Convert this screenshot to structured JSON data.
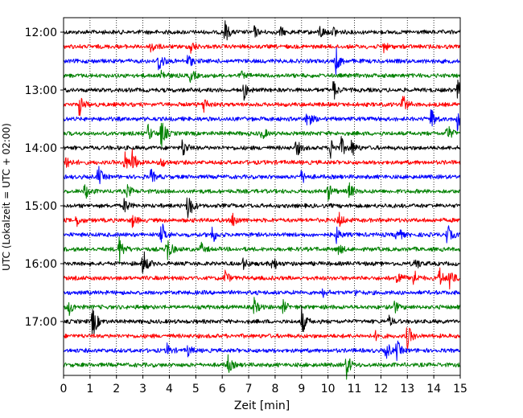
{
  "chart_data": {
    "type": "line",
    "title": "",
    "xlabel": "Zeit  [min]",
    "ylabel": "UTC (Lokalzeit = UTC + 02:00)",
    "xlim": [
      0,
      15
    ],
    "x_ticks": [
      "0",
      "1",
      "2",
      "3",
      "4",
      "5",
      "6",
      "7",
      "8",
      "9",
      "10",
      "11",
      "12",
      "13",
      "14",
      "15"
    ],
    "y_ticks": [
      "12:00",
      "13:00",
      "14:00",
      "15:00",
      "16:00",
      "17:00"
    ],
    "grid": "vertical-dotted",
    "trace_colors": [
      "#000000",
      "#ff0000",
      "#0000ff",
      "#008000"
    ],
    "traces": [
      {
        "start": "12:00",
        "events": [
          [
            6.1,
            0.6
          ],
          [
            7.2,
            0.3
          ],
          [
            8.2,
            0.25
          ],
          [
            9.7,
            0.4
          ],
          [
            10.2,
            0.3
          ]
        ]
      },
      {
        "start": "12:15",
        "events": [
          [
            3.3,
            0.45
          ],
          [
            4.8,
            0.4
          ],
          [
            12.1,
            0.3
          ]
        ]
      },
      {
        "start": "12:30",
        "events": [
          [
            3.6,
            0.75
          ],
          [
            4.7,
            0.4
          ],
          [
            10.3,
            0.7
          ]
        ]
      },
      {
        "start": "12:45",
        "events": [
          [
            3.7,
            0.35
          ],
          [
            4.8,
            0.35
          ],
          [
            6.7,
            0.2
          ]
        ]
      },
      {
        "start": "13:00",
        "events": [
          [
            6.8,
            0.55
          ],
          [
            10.2,
            0.55
          ],
          [
            14.9,
            0.5
          ]
        ]
      },
      {
        "start": "13:15",
        "events": [
          [
            0.6,
            0.6
          ],
          [
            5.3,
            0.45
          ],
          [
            12.8,
            0.7
          ]
        ]
      },
      {
        "start": "13:30",
        "events": [
          [
            9.2,
            0.65
          ],
          [
            13.9,
            0.6
          ],
          [
            14.9,
            0.7
          ]
        ]
      },
      {
        "start": "13:45",
        "events": [
          [
            3.2,
            0.45
          ],
          [
            3.7,
            0.85
          ],
          [
            7.5,
            0.35
          ],
          [
            14.5,
            0.55
          ]
        ]
      },
      {
        "start": "14:00",
        "events": [
          [
            4.5,
            0.55
          ],
          [
            8.8,
            0.5
          ],
          [
            10.1,
            0.55
          ],
          [
            10.5,
            0.5
          ],
          [
            10.9,
            0.45
          ]
        ]
      },
      {
        "start": "14:15",
        "events": [
          [
            0.1,
            0.5
          ],
          [
            2.3,
            0.6
          ],
          [
            2.6,
            0.7
          ],
          [
            3.7,
            0.3
          ]
        ]
      },
      {
        "start": "14:30",
        "events": [
          [
            1.3,
            0.6
          ],
          [
            3.3,
            0.4
          ],
          [
            9.0,
            0.4
          ]
        ]
      },
      {
        "start": "14:45",
        "events": [
          [
            0.8,
            0.45
          ],
          [
            2.4,
            0.35
          ],
          [
            10.0,
            0.45
          ],
          [
            10.8,
            0.45
          ]
        ]
      },
      {
        "start": "15:00",
        "events": [
          [
            2.3,
            0.45
          ],
          [
            4.7,
            1.0
          ]
        ]
      },
      {
        "start": "15:15",
        "events": [
          [
            0.5,
            0.3
          ],
          [
            2.6,
            0.35
          ],
          [
            6.4,
            0.45
          ],
          [
            10.4,
            0.45
          ]
        ]
      },
      {
        "start": "15:30",
        "events": [
          [
            3.7,
            0.7
          ],
          [
            5.6,
            0.55
          ],
          [
            10.3,
            0.45
          ],
          [
            12.6,
            0.55
          ],
          [
            14.5,
            0.6
          ]
        ]
      },
      {
        "start": "15:45",
        "events": [
          [
            2.1,
            0.8
          ],
          [
            3.9,
            0.8
          ],
          [
            5.2,
            0.3
          ],
          [
            10.4,
            0.3
          ]
        ]
      },
      {
        "start": "16:00",
        "events": [
          [
            3.0,
            0.9
          ],
          [
            6.8,
            0.3
          ],
          [
            7.9,
            0.45
          ],
          [
            13.3,
            0.35
          ]
        ]
      },
      {
        "start": "16:15",
        "events": [
          [
            6.1,
            0.45
          ],
          [
            12.6,
            0.6
          ],
          [
            13.2,
            0.65
          ],
          [
            14.2,
            0.6
          ],
          [
            14.6,
            0.7
          ]
        ]
      },
      {
        "start": "16:30",
        "events": [
          [
            9.8,
            0.2
          ],
          [
            11.0,
            0.15
          ]
        ]
      },
      {
        "start": "16:45",
        "events": [
          [
            0.2,
            0.45
          ],
          [
            7.2,
            0.5
          ],
          [
            8.3,
            0.35
          ],
          [
            12.5,
            0.35
          ]
        ]
      },
      {
        "start": "17:00",
        "events": [
          [
            1.1,
            1.0
          ],
          [
            9.0,
            0.8
          ],
          [
            12.3,
            0.3
          ]
        ]
      },
      {
        "start": "17:15",
        "events": [
          [
            13.0,
            0.7
          ],
          [
            11.8,
            0.2
          ]
        ]
      },
      {
        "start": "17:30",
        "events": [
          [
            3.9,
            0.35
          ],
          [
            4.7,
            0.3
          ],
          [
            12.2,
            0.5
          ],
          [
            12.6,
            0.55
          ]
        ]
      },
      {
        "start": "17:45",
        "events": [
          [
            6.2,
            0.55
          ],
          [
            10.7,
            0.7
          ]
        ]
      }
    ]
  }
}
